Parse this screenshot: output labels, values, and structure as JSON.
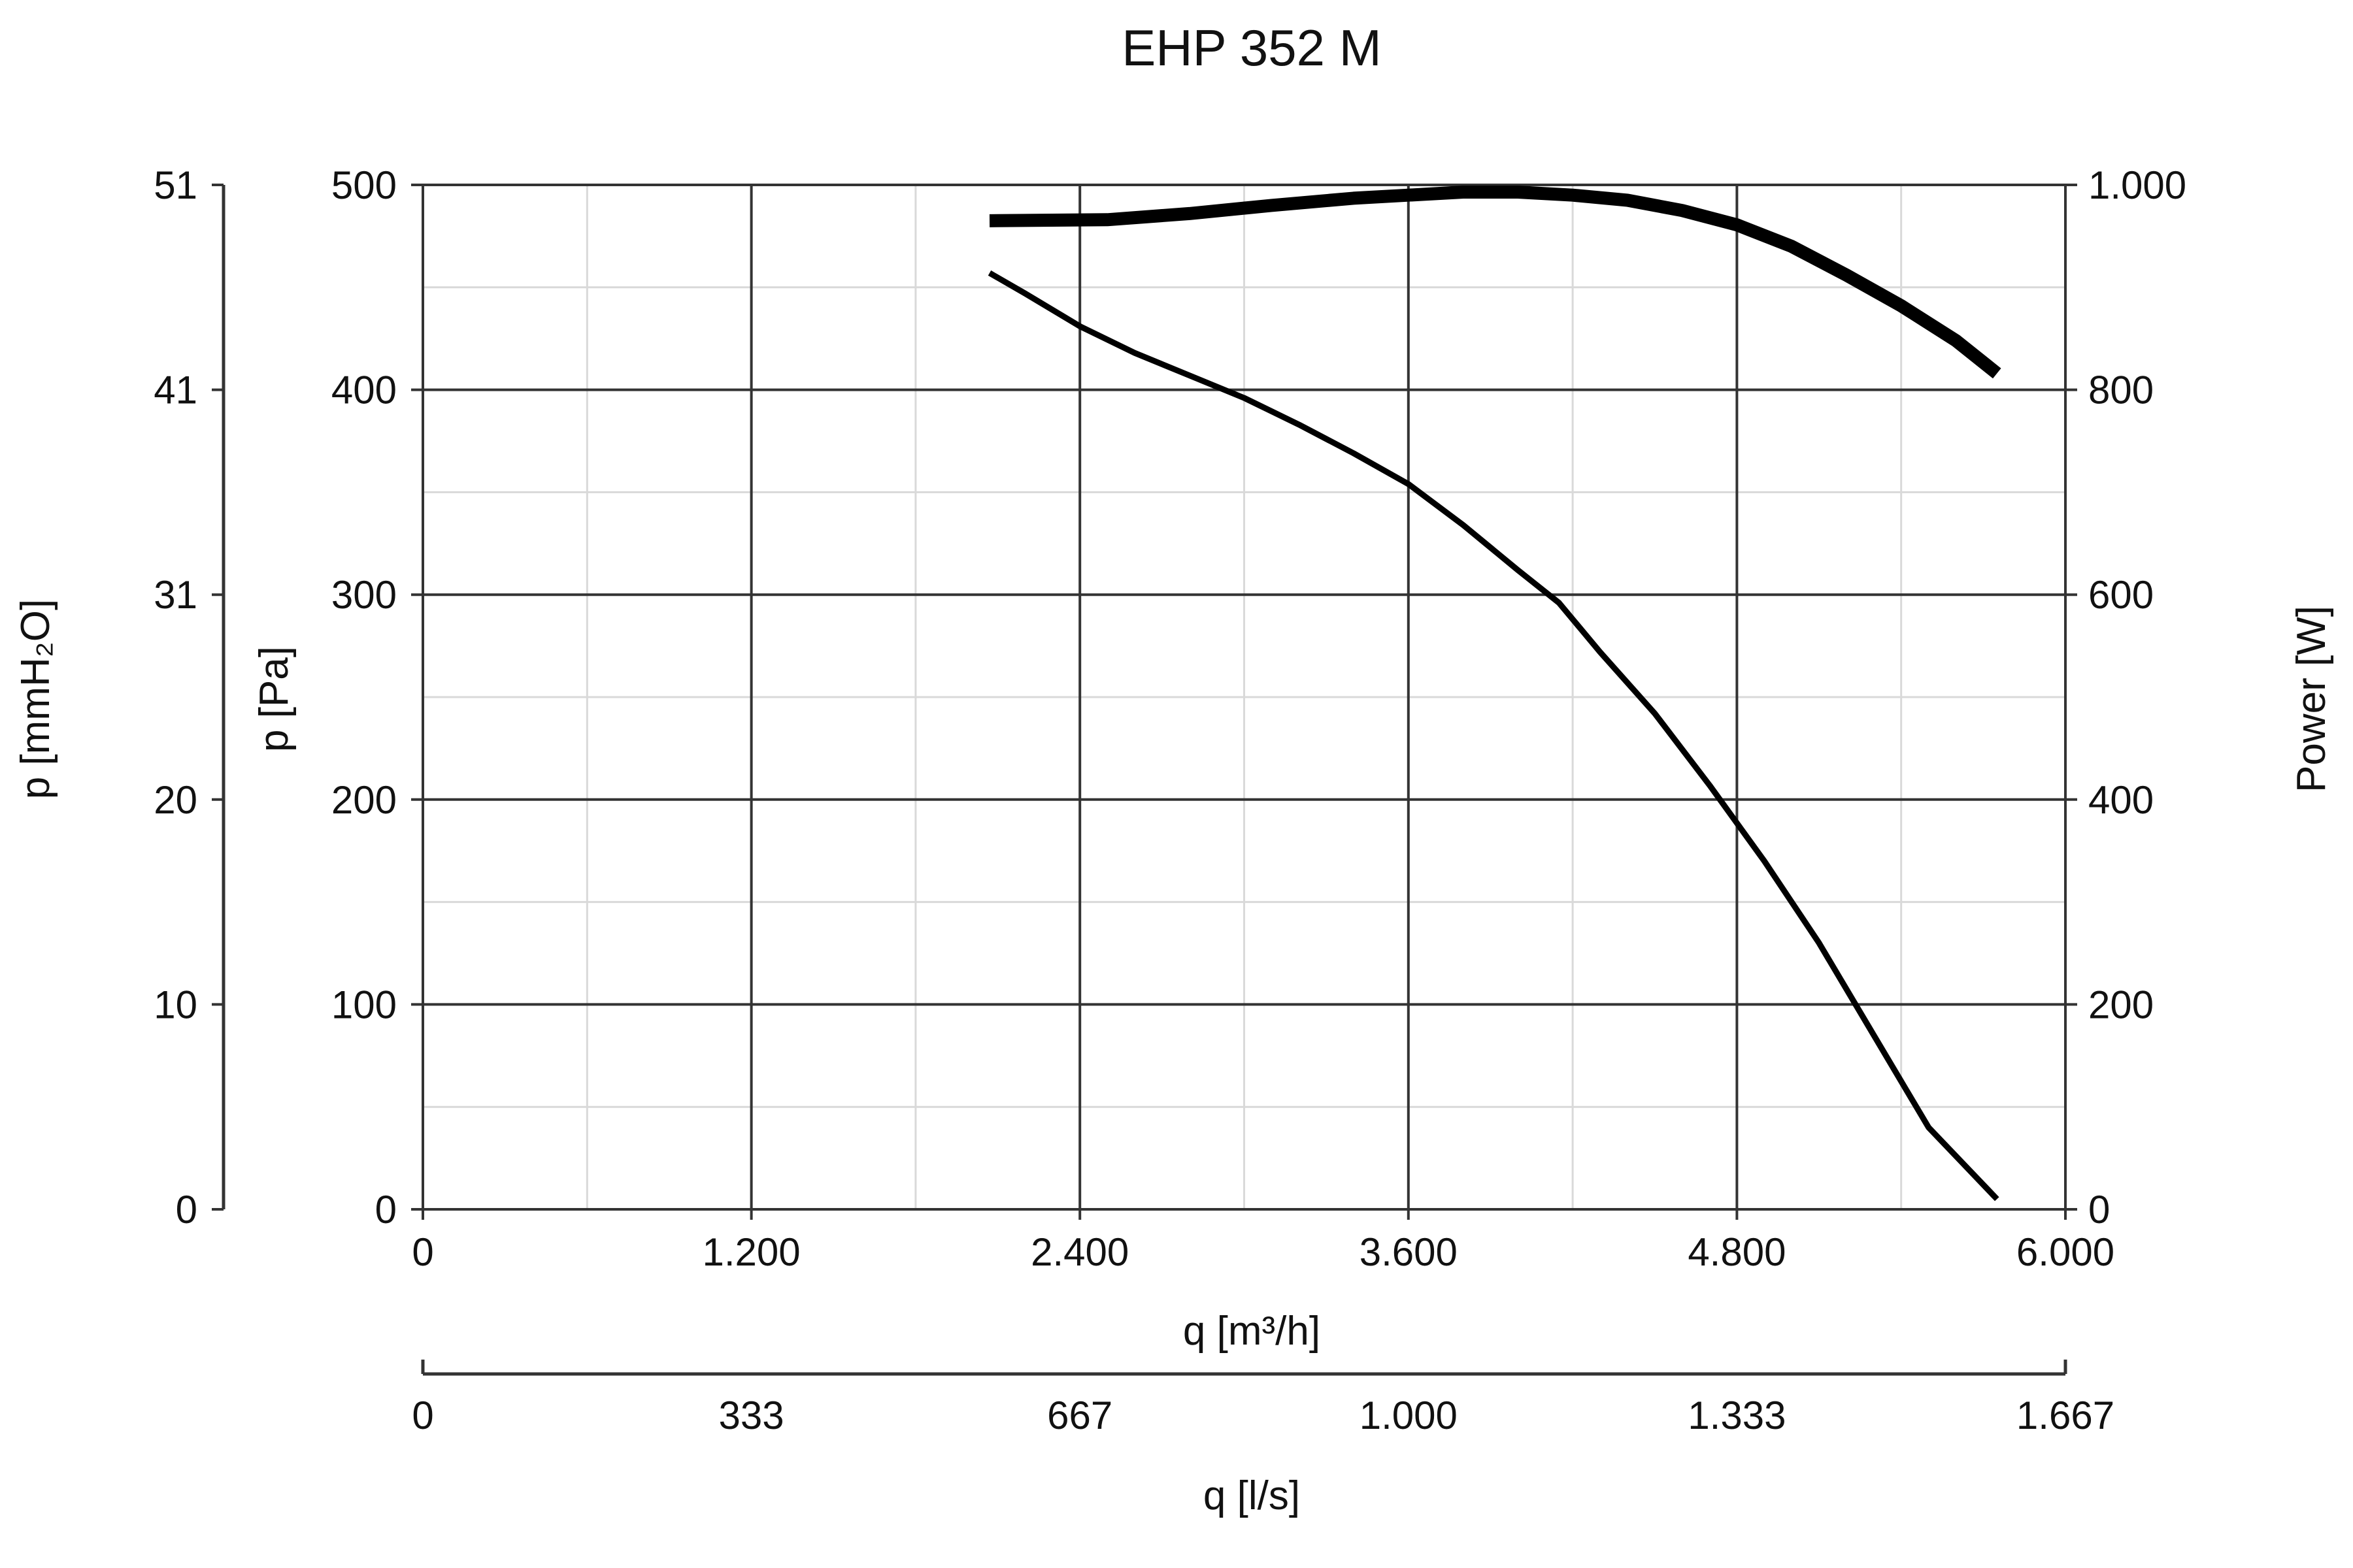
{
  "chart_data": {
    "type": "line",
    "title": "EHP 352 M",
    "xlabel": "q [m³/h]",
    "xlabel_secondary": "q [l/s]",
    "ylabel": "p [Pa]",
    "ylabel_secondary": "p [mmH₂O]",
    "ylabel_right": "Power [W]",
    "xlim": [
      0,
      6000
    ],
    "ylim": [
      0,
      500
    ],
    "ylim_right": [
      0,
      1000
    ],
    "grid": true,
    "x_ticks": [
      "0",
      "1.200",
      "2.400",
      "3.600",
      "4.800",
      "6.000"
    ],
    "x_secondary_ticks": [
      "0",
      "333",
      "667",
      "1.000",
      "1.333",
      "1.667"
    ],
    "y_ticks": [
      "0",
      "100",
      "200",
      "300",
      "400",
      "500"
    ],
    "y_secondary_ticks": [
      "0",
      "10",
      "20",
      "31",
      "41",
      "51"
    ],
    "y_right_ticks": [
      "0",
      "200",
      "400",
      "600",
      "800",
      "1.000"
    ],
    "series": [
      {
        "axis": "left",
        "points": [
          [
            2070,
            457
          ],
          [
            2200,
            447
          ],
          [
            2400,
            431
          ],
          [
            2600,
            418
          ],
          [
            2800,
            407
          ],
          [
            3000,
            396
          ],
          [
            3200,
            383
          ],
          [
            3400,
            369
          ],
          [
            3600,
            354
          ],
          [
            3800,
            334
          ],
          [
            4000,
            312
          ],
          [
            4150,
            296
          ],
          [
            4300,
            272
          ],
          [
            4500,
            242
          ],
          [
            4700,
            207
          ],
          [
            4900,
            170
          ],
          [
            5100,
            130
          ],
          [
            5300,
            85
          ],
          [
            5500,
            40
          ],
          [
            5750,
            5
          ]
        ]
      },
      {
        "axis": "right",
        "points": [
          [
            2070,
            965
          ],
          [
            2500,
            966
          ],
          [
            2800,
            972
          ],
          [
            3100,
            980
          ],
          [
            3400,
            987
          ],
          [
            3600,
            990
          ],
          [
            3800,
            993
          ],
          [
            4000,
            993
          ],
          [
            4200,
            990
          ],
          [
            4400,
            985
          ],
          [
            4600,
            975
          ],
          [
            4800,
            961
          ],
          [
            5000,
            940
          ],
          [
            5200,
            912
          ],
          [
            5400,
            882
          ],
          [
            5600,
            848
          ],
          [
            5750,
            816
          ]
        ]
      }
    ],
    "colors": {
      "line": "#000000",
      "major_grid": "#333333",
      "minor_grid": "#d9d9d9",
      "axis": "#333333"
    }
  }
}
